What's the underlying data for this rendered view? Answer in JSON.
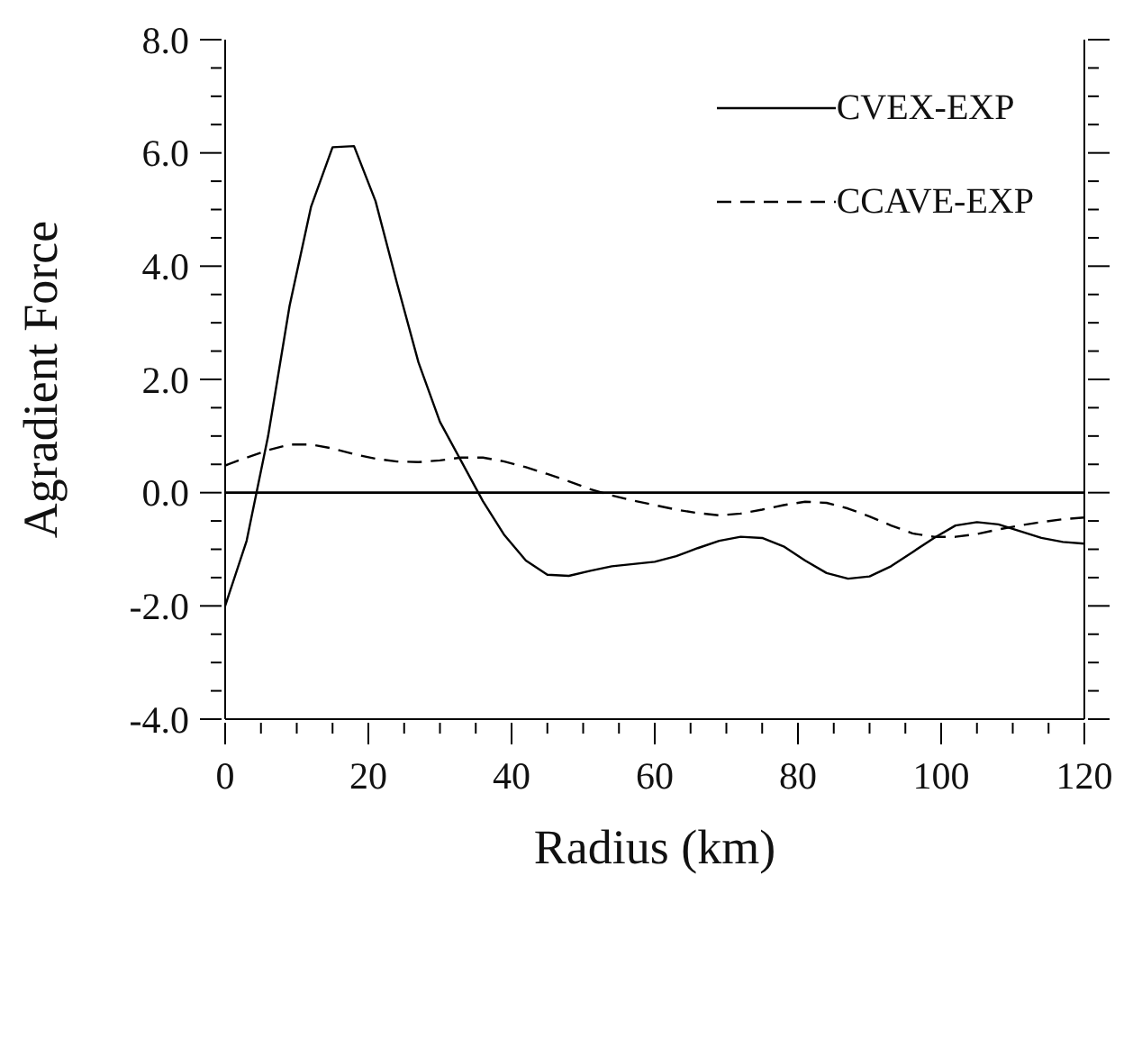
{
  "chart_data": {
    "type": "line",
    "xlabel": "Radius (km)",
    "ylabel": "Agradient Force",
    "x": [
      0,
      3,
      6,
      9,
      12,
      15,
      18,
      21,
      24,
      27,
      30,
      33,
      36,
      39,
      42,
      45,
      48,
      51,
      54,
      57,
      60,
      63,
      66,
      69,
      72,
      75,
      78,
      81,
      84,
      87,
      90,
      93,
      96,
      99,
      102,
      105,
      108,
      111,
      114,
      117,
      120
    ],
    "series": [
      {
        "name": "CVEX-EXP",
        "color": "#000000",
        "line_style": "solid",
        "values": [
          -2.0,
          -0.85,
          1.0,
          3.3,
          5.05,
          6.1,
          6.12,
          5.15,
          3.7,
          2.3,
          1.25,
          0.55,
          -0.15,
          -0.75,
          -1.2,
          -1.45,
          -1.47,
          -1.38,
          -1.3,
          -1.26,
          -1.22,
          -1.12,
          -0.98,
          -0.85,
          -0.78,
          -0.8,
          -0.95,
          -1.2,
          -1.42,
          -1.52,
          -1.48,
          -1.3,
          -1.05,
          -0.8,
          -0.58,
          -0.52,
          -0.56,
          -0.68,
          -0.8,
          -0.87,
          -0.9
        ]
      },
      {
        "name": "CCAVE-EXP",
        "color": "#000000",
        "line_style": "dashed",
        "values": [
          0.48,
          0.62,
          0.75,
          0.85,
          0.85,
          0.78,
          0.68,
          0.6,
          0.55,
          0.54,
          0.57,
          0.62,
          0.62,
          0.55,
          0.45,
          0.33,
          0.2,
          0.06,
          -0.05,
          -0.14,
          -0.22,
          -0.3,
          -0.36,
          -0.4,
          -0.37,
          -0.3,
          -0.22,
          -0.16,
          -0.18,
          -0.28,
          -0.42,
          -0.58,
          -0.72,
          -0.78,
          -0.78,
          -0.73,
          -0.65,
          -0.58,
          -0.52,
          -0.47,
          -0.44
        ]
      }
    ],
    "xlim": [
      0,
      120
    ],
    "xticks": [
      0,
      {
        "value": 5,
        "label": null
      },
      {
        "value": 10,
        "label": null
      },
      {
        "value": 15,
        "label": null
      },
      20,
      {
        "value": 25,
        "label": null
      },
      {
        "value": 30,
        "label": null
      },
      {
        "value": 35,
        "label": null
      },
      40,
      {
        "value": 45,
        "label": null
      },
      {
        "value": 50,
        "label": null
      },
      {
        "value": 55,
        "label": null
      },
      60,
      {
        "value": 65,
        "label": null
      },
      {
        "value": 70,
        "label": null
      },
      {
        "value": 75,
        "label": null
      },
      80,
      {
        "value": 85,
        "label": null
      },
      {
        "value": 90,
        "label": null
      },
      {
        "value": 95,
        "label": null
      },
      100,
      {
        "value": 105,
        "label": null
      },
      {
        "value": 110,
        "label": null
      },
      {
        "value": 115,
        "label": null
      },
      120
    ],
    "ylim": [
      -4,
      8
    ],
    "yticks": [
      {
        "value": -4,
        "label": "-4.0"
      },
      {
        "value": -3.5,
        "label": null
      },
      {
        "value": -3,
        "label": null
      },
      {
        "value": -2.5,
        "label": null
      },
      {
        "value": -2,
        "label": "-2.0"
      },
      {
        "value": -1.5,
        "label": null
      },
      {
        "value": -1,
        "label": null
      },
      {
        "value": -0.5,
        "label": null
      },
      {
        "value": 0,
        "label": "0.0"
      },
      {
        "value": 0.5,
        "label": null
      },
      {
        "value": 1,
        "label": null
      },
      {
        "value": 1.5,
        "label": null
      },
      {
        "value": 2,
        "label": "2.0"
      },
      {
        "value": 2.5,
        "label": null
      },
      {
        "value": 3,
        "label": null
      },
      {
        "value": 3.5,
        "label": null
      },
      {
        "value": 4,
        "label": "4.0"
      },
      {
        "value": 4.5,
        "label": null
      },
      {
        "value": 5,
        "label": null
      },
      {
        "value": 5.5,
        "label": null
      },
      {
        "value": 6,
        "label": "6.0"
      },
      {
        "value": 6.5,
        "label": null
      },
      {
        "value": 7,
        "label": null
      },
      {
        "value": 7.5,
        "label": null
      },
      {
        "value": 8,
        "label": "8.0"
      }
    ],
    "ref_lines": [
      {
        "axis": "y",
        "value": 0,
        "color": "#000000"
      }
    ],
    "grid": false,
    "legend": "top right"
  }
}
